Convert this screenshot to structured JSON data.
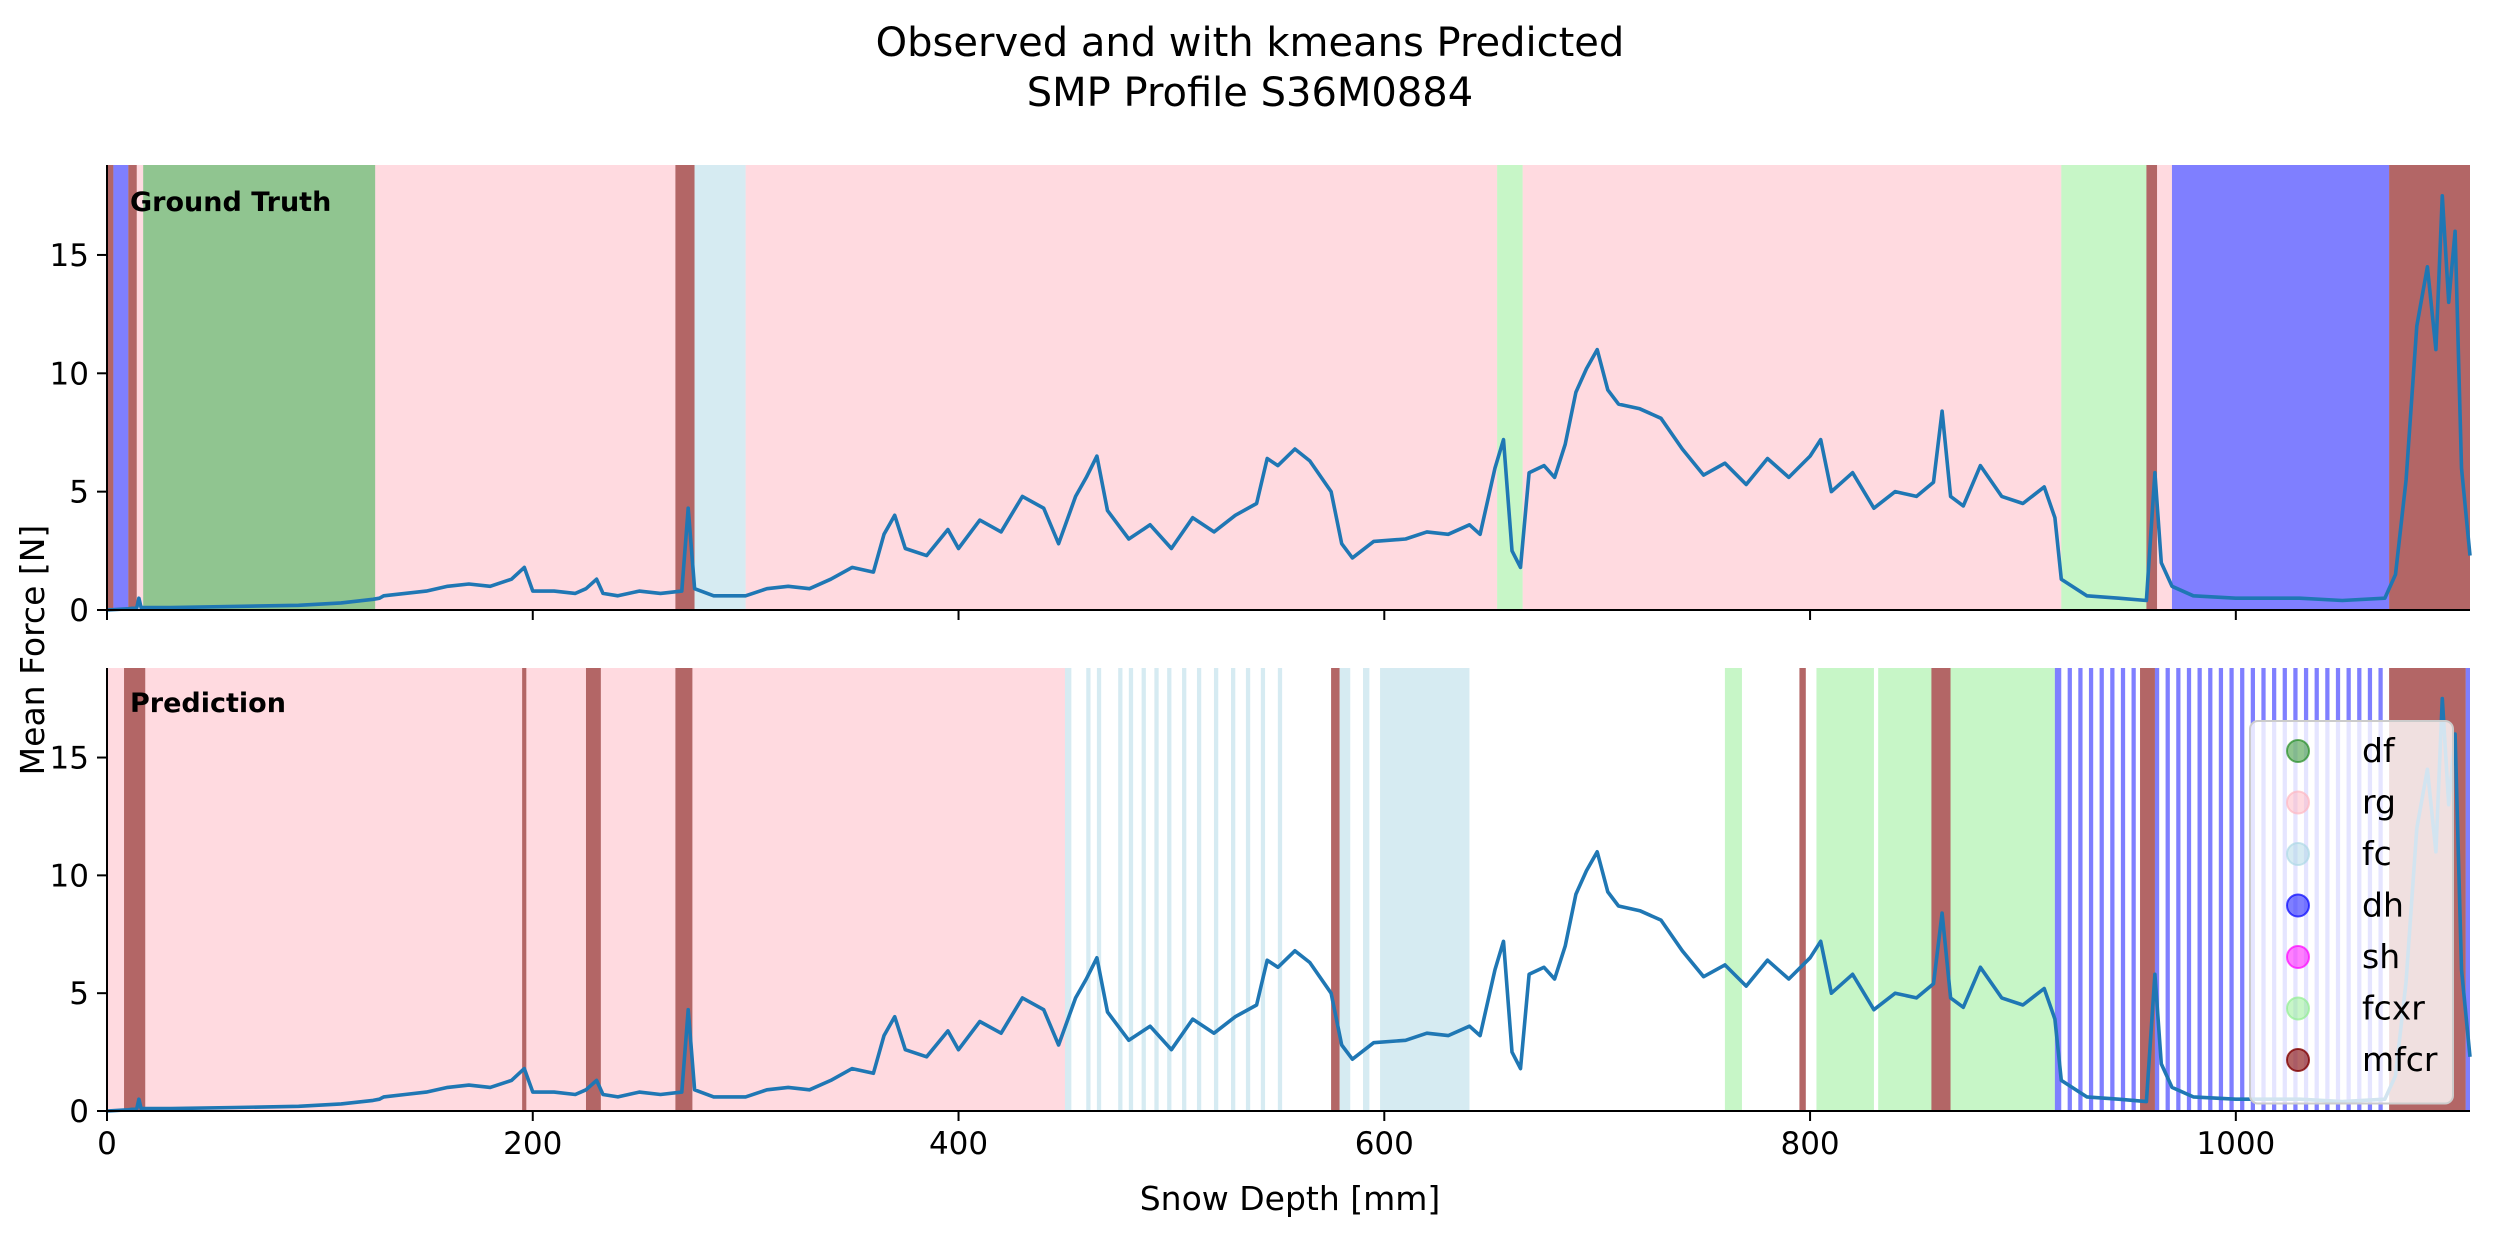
{
  "chart_data": {
    "type": "line",
    "title_lines": [
      "Observed and with kmeans Predicted",
      "SMP Profile S36M0884"
    ],
    "xlabel": "Snow Depth [mm]",
    "ylabel": "Mean Force [N]",
    "xlim": [
      0,
      1110
    ],
    "ylim": [
      0,
      18.8
    ],
    "xticks": [
      0,
      200,
      400,
      600,
      800,
      1000
    ],
    "yticks": [
      0,
      5,
      10,
      15
    ],
    "grid": false,
    "legend_placement": "lower-right of bottom panel",
    "classes": [
      {
        "name": "df",
        "color": "#228b22",
        "alpha": 0.5
      },
      {
        "name": "rg",
        "color": "#ffb6c1",
        "alpha": 0.5
      },
      {
        "name": "fc",
        "color": "#add8e6",
        "alpha": 0.5
      },
      {
        "name": "dh",
        "color": "#0000ff",
        "alpha": 0.5
      },
      {
        "name": "sh",
        "color": "#ff00ff",
        "alpha": 0.5
      },
      {
        "name": "fcxr",
        "color": "#90ee90",
        "alpha": 0.5
      },
      {
        "name": "mfcr",
        "color": "#800000",
        "alpha": 0.6
      }
    ],
    "series": [
      {
        "color": "#1f77b4",
        "points": [
          [
            0,
            0.0
          ],
          [
            10,
            0.05
          ],
          [
            14,
            0.1
          ],
          [
            15,
            0.5
          ],
          [
            16,
            0.1
          ],
          [
            30,
            0.1
          ],
          [
            60,
            0.15
          ],
          [
            90,
            0.2
          ],
          [
            110,
            0.3
          ],
          [
            125,
            0.45
          ],
          [
            128,
            0.5
          ],
          [
            130,
            0.6
          ],
          [
            140,
            0.7
          ],
          [
            150,
            0.8
          ],
          [
            160,
            1.0
          ],
          [
            170,
            1.1
          ],
          [
            180,
            1.0
          ],
          [
            190,
            1.3
          ],
          [
            196,
            1.8
          ],
          [
            200,
            0.8
          ],
          [
            210,
            0.8
          ],
          [
            220,
            0.7
          ],
          [
            225,
            0.9
          ],
          [
            230,
            1.3
          ],
          [
            233,
            0.7
          ],
          [
            240,
            0.6
          ],
          [
            250,
            0.8
          ],
          [
            260,
            0.7
          ],
          [
            270,
            0.8
          ],
          [
            273,
            4.3
          ],
          [
            276,
            0.9
          ],
          [
            285,
            0.6
          ],
          [
            300,
            0.6
          ],
          [
            310,
            0.9
          ],
          [
            320,
            1.0
          ],
          [
            330,
            0.9
          ],
          [
            340,
            1.3
          ],
          [
            350,
            1.8
          ],
          [
            360,
            1.6
          ],
          [
            365,
            3.2
          ],
          [
            370,
            4.0
          ],
          [
            375,
            2.6
          ],
          [
            385,
            2.3
          ],
          [
            395,
            3.4
          ],
          [
            400,
            2.6
          ],
          [
            410,
            3.8
          ],
          [
            420,
            3.3
          ],
          [
            430,
            4.8
          ],
          [
            440,
            4.3
          ],
          [
            447,
            2.8
          ],
          [
            455,
            4.8
          ],
          [
            460,
            5.6
          ],
          [
            465,
            6.5
          ],
          [
            470,
            4.2
          ],
          [
            480,
            3.0
          ],
          [
            490,
            3.6
          ],
          [
            500,
            2.6
          ],
          [
            510,
            3.9
          ],
          [
            520,
            3.3
          ],
          [
            530,
            4.0
          ],
          [
            540,
            4.5
          ],
          [
            545,
            6.4
          ],
          [
            550,
            6.1
          ],
          [
            558,
            6.8
          ],
          [
            565,
            6.3
          ],
          [
            575,
            5.0
          ],
          [
            580,
            2.8
          ],
          [
            585,
            2.2
          ],
          [
            595,
            2.9
          ],
          [
            610,
            3.0
          ],
          [
            620,
            3.3
          ],
          [
            630,
            3.2
          ],
          [
            640,
            3.6
          ],
          [
            645,
            3.2
          ],
          [
            652,
            6.0
          ],
          [
            656,
            7.2
          ],
          [
            660,
            2.5
          ],
          [
            664,
            1.8
          ],
          [
            668,
            5.8
          ],
          [
            675,
            6.1
          ],
          [
            680,
            5.6
          ],
          [
            685,
            7.0
          ],
          [
            690,
            9.2
          ],
          [
            695,
            10.2
          ],
          [
            700,
            11.0
          ],
          [
            705,
            9.3
          ],
          [
            710,
            8.7
          ],
          [
            720,
            8.5
          ],
          [
            730,
            8.1
          ],
          [
            740,
            6.8
          ],
          [
            750,
            5.7
          ],
          [
            760,
            6.2
          ],
          [
            770,
            5.3
          ],
          [
            780,
            6.4
          ],
          [
            790,
            5.6
          ],
          [
            800,
            6.5
          ],
          [
            805,
            7.2
          ],
          [
            810,
            5.0
          ],
          [
            820,
            5.8
          ],
          [
            830,
            4.3
          ],
          [
            840,
            5.0
          ],
          [
            850,
            4.8
          ],
          [
            858,
            5.4
          ],
          [
            862,
            8.4
          ],
          [
            866,
            4.8
          ],
          [
            872,
            4.4
          ],
          [
            880,
            6.1
          ],
          [
            890,
            4.8
          ],
          [
            900,
            4.5
          ],
          [
            910,
            5.2
          ],
          [
            915,
            3.9
          ],
          [
            918,
            1.3
          ],
          [
            930,
            0.6
          ],
          [
            945,
            0.5
          ],
          [
            958,
            0.4
          ],
          [
            962,
            5.8
          ],
          [
            965,
            2.0
          ],
          [
            970,
            1.0
          ],
          [
            980,
            0.6
          ],
          [
            1000,
            0.5
          ],
          [
            1030,
            0.5
          ],
          [
            1050,
            0.4
          ],
          [
            1070,
            0.5
          ],
          [
            1075,
            1.5
          ],
          [
            1080,
            5.5
          ],
          [
            1085,
            12.0
          ],
          [
            1090,
            14.5
          ],
          [
            1094,
            11.0
          ],
          [
            1097,
            17.5
          ],
          [
            1100,
            13.0
          ],
          [
            1103,
            16.0
          ],
          [
            1106,
            6.0
          ],
          [
            1110,
            2.3
          ]
        ]
      }
    ],
    "panels": [
      {
        "label": "Ground Truth",
        "spans": [
          {
            "x0": 0,
            "x1": 3,
            "cls": "mfcr"
          },
          {
            "x0": 3,
            "x1": 10,
            "cls": "dh"
          },
          {
            "x0": 10,
            "x1": 14,
            "cls": "mfcr"
          },
          {
            "x0": 14,
            "x1": 17,
            "cls": "rg"
          },
          {
            "x0": 17,
            "x1": 126,
            "cls": "df"
          },
          {
            "x0": 126,
            "x1": 267,
            "cls": "rg"
          },
          {
            "x0": 267,
            "x1": 276,
            "cls": "mfcr"
          },
          {
            "x0": 276,
            "x1": 300,
            "cls": "fc"
          },
          {
            "x0": 300,
            "x1": 653,
            "cls": "rg"
          },
          {
            "x0": 653,
            "x1": 665,
            "cls": "fcxr"
          },
          {
            "x0": 665,
            "x1": 918,
            "cls": "rg"
          },
          {
            "x0": 918,
            "x1": 958,
            "cls": "fcxr"
          },
          {
            "x0": 958,
            "x1": 963,
            "cls": "mfcr"
          },
          {
            "x0": 963,
            "x1": 970,
            "cls": "rg"
          },
          {
            "x0": 970,
            "x1": 1072,
            "cls": "dh"
          },
          {
            "x0": 1072,
            "x1": 1110,
            "cls": "mfcr"
          }
        ]
      },
      {
        "label": "Prediction",
        "spans": [
          {
            "x0": 0,
            "x1": 8,
            "cls": "rg"
          },
          {
            "x0": 8,
            "x1": 18,
            "cls": "mfcr"
          },
          {
            "x0": 18,
            "x1": 195,
            "cls": "rg"
          },
          {
            "x0": 195,
            "x1": 197,
            "cls": "mfcr"
          },
          {
            "x0": 197,
            "x1": 225,
            "cls": "rg"
          },
          {
            "x0": 225,
            "x1": 232,
            "cls": "mfcr"
          },
          {
            "x0": 232,
            "x1": 267,
            "cls": "rg"
          },
          {
            "x0": 267,
            "x1": 275,
            "cls": "mfcr"
          },
          {
            "x0": 275,
            "x1": 450,
            "cls": "rg"
          },
          {
            "x0": 450,
            "x1": 453,
            "cls": "fc"
          },
          {
            "x0": 460,
            "x1": 462,
            "cls": "fc"
          },
          {
            "x0": 465,
            "x1": 467,
            "cls": "fc"
          },
          {
            "x0": 475,
            "x1": 477,
            "cls": "fc"
          },
          {
            "x0": 480,
            "x1": 482,
            "cls": "fc"
          },
          {
            "x0": 486,
            "x1": 488,
            "cls": "fc"
          },
          {
            "x0": 492,
            "x1": 494,
            "cls": "fc"
          },
          {
            "x0": 498,
            "x1": 500,
            "cls": "fc"
          },
          {
            "x0": 505,
            "x1": 507,
            "cls": "fc"
          },
          {
            "x0": 512,
            "x1": 514,
            "cls": "fc"
          },
          {
            "x0": 520,
            "x1": 522,
            "cls": "fc"
          },
          {
            "x0": 528,
            "x1": 530,
            "cls": "fc"
          },
          {
            "x0": 535,
            "x1": 537,
            "cls": "fc"
          },
          {
            "x0": 542,
            "x1": 544,
            "cls": "fc"
          },
          {
            "x0": 550,
            "x1": 552,
            "cls": "fc"
          },
          {
            "x0": 575,
            "x1": 579,
            "cls": "mfcr"
          },
          {
            "x0": 579,
            "x1": 584,
            "cls": "fc"
          },
          {
            "x0": 590,
            "x1": 593,
            "cls": "fc"
          },
          {
            "x0": 598,
            "x1": 640,
            "cls": "fc"
          },
          {
            "x0": 760,
            "x1": 768,
            "cls": "fcxr"
          },
          {
            "x0": 795,
            "x1": 798,
            "cls": "mfcr"
          },
          {
            "x0": 803,
            "x1": 830,
            "cls": "fcxr"
          },
          {
            "x0": 832,
            "x1": 857,
            "cls": "fcxr"
          },
          {
            "x0": 857,
            "x1": 866,
            "cls": "mfcr"
          },
          {
            "x0": 866,
            "x1": 915,
            "cls": "fcxr"
          },
          {
            "x0": 915,
            "x1": 918,
            "cls": "dh"
          },
          {
            "x0": 921,
            "x1": 923,
            "cls": "dh"
          },
          {
            "x0": 926,
            "x1": 928,
            "cls": "dh"
          },
          {
            "x0": 931,
            "x1": 933,
            "cls": "dh"
          },
          {
            "x0": 936,
            "x1": 938,
            "cls": "dh"
          },
          {
            "x0": 941,
            "x1": 943,
            "cls": "dh"
          },
          {
            "x0": 946,
            "x1": 948,
            "cls": "dh"
          },
          {
            "x0": 951,
            "x1": 953,
            "cls": "dh"
          },
          {
            "x0": 955,
            "x1": 962,
            "cls": "mfcr"
          },
          {
            "x0": 962,
            "x1": 964,
            "cls": "dh"
          },
          {
            "x0": 967,
            "x1": 969,
            "cls": "dh"
          },
          {
            "x0": 972,
            "x1": 974,
            "cls": "dh"
          },
          {
            "x0": 977,
            "x1": 979,
            "cls": "dh"
          },
          {
            "x0": 982,
            "x1": 984,
            "cls": "dh"
          },
          {
            "x0": 987,
            "x1": 989,
            "cls": "dh"
          },
          {
            "x0": 992,
            "x1": 994,
            "cls": "dh"
          },
          {
            "x0": 997,
            "x1": 999,
            "cls": "dh"
          },
          {
            "x0": 1002,
            "x1": 1004,
            "cls": "dh"
          },
          {
            "x0": 1007,
            "x1": 1009,
            "cls": "dh"
          },
          {
            "x0": 1012,
            "x1": 1014,
            "cls": "dh"
          },
          {
            "x0": 1017,
            "x1": 1019,
            "cls": "dh"
          },
          {
            "x0": 1022,
            "x1": 1024,
            "cls": "dh"
          },
          {
            "x0": 1027,
            "x1": 1029,
            "cls": "dh"
          },
          {
            "x0": 1032,
            "x1": 1034,
            "cls": "dh"
          },
          {
            "x0": 1037,
            "x1": 1039,
            "cls": "dh"
          },
          {
            "x0": 1042,
            "x1": 1044,
            "cls": "dh"
          },
          {
            "x0": 1047,
            "x1": 1049,
            "cls": "dh"
          },
          {
            "x0": 1052,
            "x1": 1054,
            "cls": "dh"
          },
          {
            "x0": 1057,
            "x1": 1059,
            "cls": "dh"
          },
          {
            "x0": 1062,
            "x1": 1064,
            "cls": "dh"
          },
          {
            "x0": 1067,
            "x1": 1069,
            "cls": "dh"
          },
          {
            "x0": 1072,
            "x1": 1108,
            "cls": "mfcr"
          },
          {
            "x0": 1108,
            "x1": 1110,
            "cls": "dh"
          }
        ]
      }
    ]
  }
}
